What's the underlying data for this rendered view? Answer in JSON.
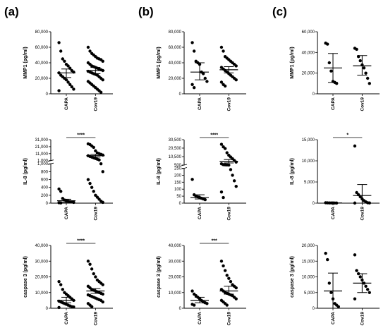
{
  "panel_labels": [
    "(a)",
    "(b)",
    "(c)"
  ],
  "chart_data": [
    {
      "id": "a-mmp1",
      "type": "scatter",
      "ylabel": "MMP1 (pg/ml)",
      "categories": [
        "CAPA",
        "Cov19"
      ],
      "ylim": [
        0,
        80000
      ],
      "yticks": [
        0,
        20000,
        40000,
        60000,
        80000
      ],
      "ytick_labels": [
        "0",
        "20,000",
        "40,000",
        "60,000",
        "80,000"
      ],
      "significance": "",
      "series": [
        {
          "name": "CAPA",
          "values": [
            66000,
            55000,
            45000,
            42000,
            38000,
            36000,
            33000,
            30000,
            28000,
            27000,
            24000,
            22000,
            20000,
            18000,
            15000,
            12000,
            9000,
            6000,
            4000
          ],
          "mean": 27000,
          "err": [
            21000,
            32000
          ]
        },
        {
          "name": "Cov19",
          "values": [
            60000,
            55000,
            52000,
            50000,
            48000,
            46000,
            45000,
            44000,
            42000,
            40000,
            38000,
            36000,
            35000,
            34000,
            33000,
            32000,
            31000,
            30000,
            29000,
            28000,
            27000,
            26000,
            25000,
            24000,
            22000,
            20000,
            18000,
            16000,
            14000,
            12000,
            10000,
            8000,
            6000,
            4000,
            2000
          ],
          "mean": 30000,
          "err": [
            26000,
            34000
          ]
        }
      ]
    },
    {
      "id": "b-mmp1",
      "type": "scatter",
      "ylabel": "MMP1 (pg/ml)",
      "categories": [
        "CAPA",
        "Cov19"
      ],
      "ylim": [
        0,
        80000
      ],
      "yticks": [
        0,
        20000,
        40000,
        60000,
        80000
      ],
      "ytick_labels": [
        "0",
        "20,000",
        "40,000",
        "60,000",
        "80,000"
      ],
      "significance": "",
      "series": [
        {
          "name": "CAPA",
          "values": [
            66000,
            55000,
            42000,
            40000,
            38000,
            28000,
            26000,
            20000,
            16000,
            12000,
            8000
          ],
          "mean": 28000,
          "err": [
            18000,
            40000
          ]
        },
        {
          "name": "Cov19",
          "values": [
            60000,
            55000,
            48000,
            46000,
            44000,
            42000,
            40000,
            38000,
            36000,
            34000,
            32000,
            30000,
            28000,
            26000,
            24000,
            22000,
            20000,
            18000,
            15000,
            12000,
            10000
          ],
          "mean": 31000,
          "err": [
            27000,
            35000
          ]
        }
      ]
    },
    {
      "id": "c-mmp1",
      "type": "scatter",
      "ylabel": "MMP1 (pg/ml)",
      "categories": [
        "CAPA",
        "Cov19"
      ],
      "ylim": [
        0,
        60000
      ],
      "yticks": [
        0,
        20000,
        40000,
        60000
      ],
      "ytick_labels": [
        "0",
        "20,000",
        "40,000",
        "60,000"
      ],
      "significance": "",
      "series": [
        {
          "name": "CAPA",
          "values": [
            49000,
            48000,
            30000,
            22000,
            12000,
            11000,
            10000
          ],
          "mean": 25000,
          "err": [
            11000,
            39000
          ]
        },
        {
          "name": "Cov19",
          "values": [
            44000,
            43000,
            36000,
            32000,
            28000,
            25000,
            20000,
            15000,
            10000
          ],
          "mean": 27000,
          "err": [
            18000,
            37000
          ]
        }
      ]
    },
    {
      "id": "a-il8",
      "type": "scatter",
      "ylabel": "IL-8 (pg/ml)",
      "categories": [
        "CAPA",
        "Cov19"
      ],
      "ytick_labels": [
        "0",
        "200",
        "400",
        "600",
        "800",
        "1,000",
        "1,000",
        "11,000",
        "21,000",
        "31,000"
      ],
      "significance": "****",
      "series": [
        {
          "name": "CAPA",
          "values": [
            360,
            300,
            120,
            80,
            60,
            50,
            40,
            30,
            20,
            10,
            5
          ],
          "mean": 60,
          "err": [
            20,
            100
          ]
        },
        {
          "name": "Cov19",
          "values": [
            25000,
            24000,
            22000,
            20000,
            15000,
            12000,
            11000,
            10000,
            9000,
            8000,
            7000,
            6000,
            5000,
            4000,
            3000,
            2000,
            1000,
            800,
            600,
            500,
            400,
            300,
            200,
            150,
            100,
            50,
            20
          ],
          "mean": 8000,
          "err": [
            6000,
            10000
          ]
        }
      ]
    },
    {
      "id": "b-il8",
      "type": "scatter",
      "ylabel": "IL-8 (pg/ml)",
      "categories": [
        "CAPA",
        "Cov19"
      ],
      "ytick_labels": [
        "0",
        "50",
        "100",
        "150",
        "200",
        "250",
        "500",
        "10,500",
        "20,500",
        "30,500"
      ],
      "significance": "****",
      "series": [
        {
          "name": "CAPA",
          "values": [
            170,
            60,
            50,
            45,
            40,
            35,
            30,
            25
          ],
          "mean": 40,
          "err": [
            30,
            60
          ]
        },
        {
          "name": "Cov19",
          "values": [
            25000,
            22000,
            20000,
            15000,
            12000,
            10000,
            8000,
            6000,
            4000,
            2000,
            1000,
            800,
            600,
            500,
            240,
            200,
            160,
            120,
            80,
            40
          ],
          "mean": 5000,
          "err": [
            3000,
            7000
          ]
        }
      ]
    },
    {
      "id": "c-il8",
      "type": "scatter",
      "ylabel": "IL-8 (pg/ml)",
      "categories": [
        "CAPA",
        "Cov19"
      ],
      "ylim": [
        0,
        15000
      ],
      "yticks": [
        0,
        5000,
        10000,
        15000
      ],
      "ytick_labels": [
        "0",
        "5,000",
        "10,000",
        "15,000"
      ],
      "significance": "*",
      "series": [
        {
          "name": "CAPA",
          "values": [
            100,
            80,
            60,
            50,
            40,
            30,
            20
          ],
          "mean": 50,
          "err": [
            20,
            80
          ]
        },
        {
          "name": "Cov19",
          "values": [
            13500,
            2500,
            2000,
            1500,
            1000,
            600,
            300,
            100,
            50,
            20
          ],
          "mean": 1800,
          "err": [
            0,
            4400
          ]
        }
      ]
    },
    {
      "id": "a-casp3",
      "type": "scatter",
      "ylabel": "caspase 3 (pg/ml)",
      "categories": [
        "CAPA",
        "Cov19"
      ],
      "ylim": [
        0,
        40000
      ],
      "yticks": [
        0,
        10000,
        20000,
        30000,
        40000
      ],
      "ytick_labels": [
        "0",
        "10,000",
        "20,000",
        "30,000",
        "40,000"
      ],
      "significance": "****",
      "series": [
        {
          "name": "CAPA",
          "values": [
            17000,
            15000,
            12000,
            10000,
            9000,
            8000,
            7000,
            6000,
            5000,
            4500,
            4000,
            3500,
            3000,
            2500,
            2000,
            1500,
            1000,
            800,
            500
          ],
          "mean": 5000,
          "err": [
            3500,
            7000
          ]
        },
        {
          "name": "Cov19",
          "values": [
            30000,
            28000,
            25000,
            22000,
            20000,
            18000,
            17000,
            16000,
            15000,
            14000,
            13000,
            12000,
            11500,
            11000,
            10500,
            10000,
            9500,
            9000,
            8500,
            8000,
            7500,
            7000,
            6500,
            6000,
            5500,
            5000,
            4000,
            3000,
            2000,
            1000
          ],
          "mean": 11000,
          "err": [
            9500,
            12500
          ]
        }
      ]
    },
    {
      "id": "b-casp3",
      "type": "scatter",
      "ylabel": "caspase 3 (pg/ml)",
      "categories": [
        "CAPA",
        "Cov19"
      ],
      "ylim": [
        0,
        40000
      ],
      "yticks": [
        0,
        10000,
        20000,
        30000,
        40000
      ],
      "ytick_labels": [
        "0",
        "10,000",
        "20,000",
        "30,000",
        "40,000"
      ],
      "significance": "***",
      "series": [
        {
          "name": "CAPA",
          "values": [
            11000,
            9000,
            8000,
            7000,
            6000,
            5000,
            4000,
            3500,
            3000,
            2500,
            2000
          ],
          "mean": 5000,
          "err": [
            3500,
            7000
          ]
        },
        {
          "name": "Cov19",
          "values": [
            30000,
            27000,
            24000,
            21000,
            19000,
            17000,
            15000,
            14000,
            13000,
            12000,
            11000,
            10000,
            9500,
            9000,
            8500,
            8000,
            7000,
            6000,
            5000,
            4000,
            3000,
            2000
          ],
          "mean": 11000,
          "err": [
            9000,
            14000
          ]
        }
      ]
    },
    {
      "id": "c-casp3",
      "type": "scatter",
      "ylabel": "caspase 3 (pg/ml)",
      "categories": [
        "CAPA",
        "Cov19"
      ],
      "ylim": [
        0,
        20000
      ],
      "yticks": [
        0,
        5000,
        10000,
        15000,
        20000
      ],
      "ytick_labels": [
        "0",
        "5,000",
        "10,000",
        "15,000",
        "20,000"
      ],
      "significance": "",
      "series": [
        {
          "name": "CAPA",
          "values": [
            17500,
            15500,
            8000,
            5000,
            3000,
            1500,
            1000,
            500
          ],
          "mean": 5500,
          "err": [
            0,
            11200
          ]
        },
        {
          "name": "Cov19",
          "values": [
            17000,
            12000,
            11000,
            10000,
            9000,
            8000,
            7000,
            6000,
            5000,
            3000
          ],
          "mean": 8000,
          "err": [
            5000,
            11000
          ]
        }
      ]
    }
  ]
}
